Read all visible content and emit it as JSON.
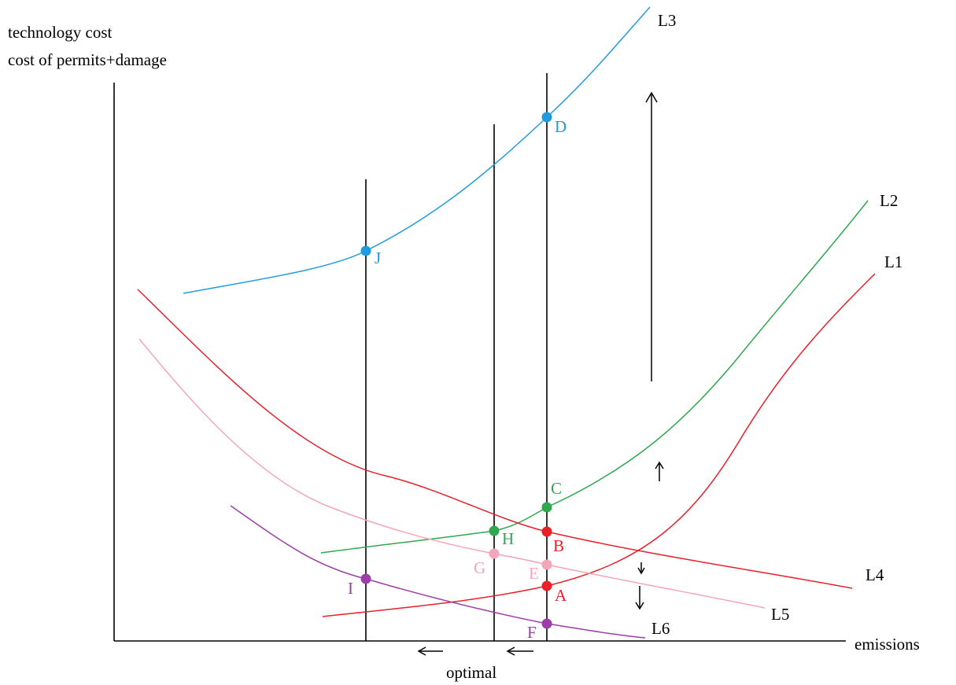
{
  "axes": {
    "y_label_line1": "technology cost",
    "y_label_line2": "cost of permits+damage",
    "x_label": "emissions",
    "bottom_label": "optimal"
  },
  "curves": [
    {
      "id": "L1",
      "label": "L1",
      "color": "#e8202a"
    },
    {
      "id": "L2",
      "label": "L2",
      "color": "#2fa84f"
    },
    {
      "id": "L3",
      "label": "L3",
      "color": "#1f9bde"
    },
    {
      "id": "L4",
      "label": "L4",
      "color": "#e8202a"
    },
    {
      "id": "L5",
      "label": "L5",
      "color": "#f4a6b8"
    },
    {
      "id": "L6",
      "label": "L6",
      "color": "#9b3fa6"
    }
  ],
  "points": [
    {
      "id": "A",
      "label": "A",
      "color": "#e8202a"
    },
    {
      "id": "B",
      "label": "B",
      "color": "#e8202a"
    },
    {
      "id": "C",
      "label": "C",
      "color": "#2fa84f"
    },
    {
      "id": "D",
      "label": "D",
      "color": "#1f9bde"
    },
    {
      "id": "E",
      "label": "E",
      "color": "#f4a6b8"
    },
    {
      "id": "F",
      "label": "F",
      "color": "#9b3fa6"
    },
    {
      "id": "G",
      "label": "G",
      "color": "#f4a6b8"
    },
    {
      "id": "H",
      "label": "H",
      "color": "#2fa84f"
    },
    {
      "id": "I",
      "label": "I",
      "color": "#9b3fa6"
    },
    {
      "id": "J",
      "label": "J",
      "color": "#1f9bde"
    }
  ],
  "arrows": [
    {
      "id": "long-up",
      "direction": "up"
    },
    {
      "id": "short-up",
      "direction": "up"
    },
    {
      "id": "short-down",
      "direction": "down"
    },
    {
      "id": "medium-down",
      "direction": "down"
    },
    {
      "id": "left-1",
      "direction": "left"
    },
    {
      "id": "left-2",
      "direction": "left"
    }
  ]
}
